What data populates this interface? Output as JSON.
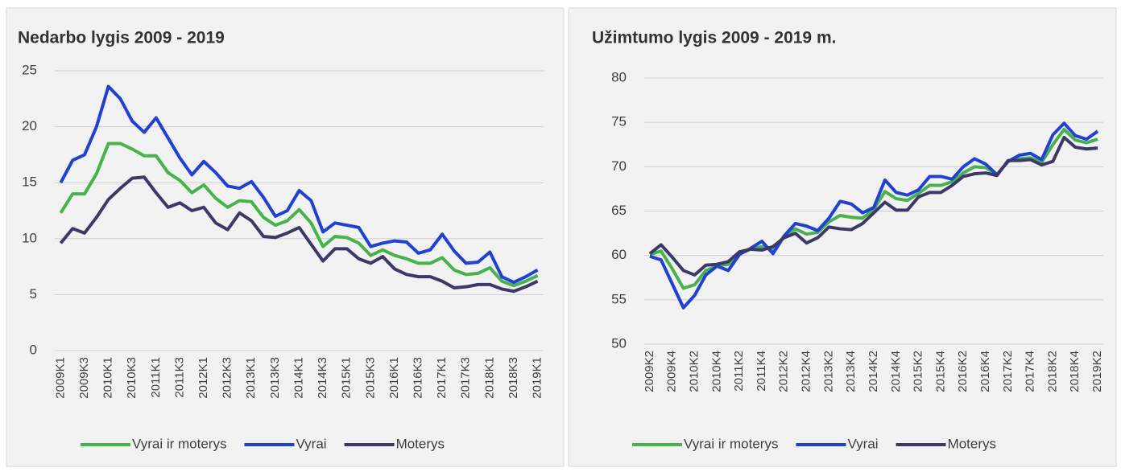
{
  "chart_data": [
    {
      "type": "line",
      "title": "Nedarbo lygis 2009 - 2019",
      "categories": [
        "2009K1",
        null,
        "2009K3",
        null,
        "2010K1",
        null,
        "2010K3",
        null,
        "2011K1",
        null,
        "2011K3",
        null,
        "2012K1",
        null,
        "2012K3",
        null,
        "2013K1",
        null,
        "2013K3",
        null,
        "2014K1",
        null,
        "2014K3",
        null,
        "2015K1",
        null,
        "2015K3",
        null,
        "2016K1",
        null,
        "2016K3",
        null,
        "2017K1",
        null,
        "2017K3",
        null,
        "2018K1",
        null,
        "2018K3",
        null,
        "2019K1"
      ],
      "series": [
        {
          "name": "Vyrai ir moterys",
          "color": "#45b54a",
          "values": [
            12.3,
            14,
            14,
            15.8,
            18.5,
            18.5,
            18,
            17.4,
            17.4,
            15.9,
            15.2,
            14.1,
            14.8,
            13.6,
            12.8,
            13.4,
            13.3,
            11.9,
            11.2,
            11.6,
            12.6,
            11.4,
            9.3,
            10.2,
            10.1,
            9.6,
            8.5,
            9,
            8.5,
            8.2,
            7.8,
            7.8,
            8.3,
            7.2,
            6.8,
            6.9,
            7.4,
            6.2,
            5.8,
            6.2,
            6.7
          ]
        },
        {
          "name": "Vyrai",
          "color": "#2040de",
          "values": [
            15,
            17,
            17.5,
            20,
            23.6,
            22.5,
            20.5,
            19.5,
            20.8,
            19,
            17.2,
            15.7,
            16.9,
            15.9,
            14.7,
            14.5,
            15.1,
            13.7,
            12,
            12.5,
            14.3,
            13.4,
            10.6,
            11.4,
            11.2,
            11,
            9.3,
            9.6,
            9.8,
            9.7,
            8.7,
            9,
            10.4,
            8.9,
            7.8,
            7.9,
            8.8,
            6.6,
            6.1,
            6.6,
            7.2
          ]
        },
        {
          "name": "Moterys",
          "color": "#3e3868",
          "values": [
            9.6,
            10.9,
            10.5,
            11.9,
            13.5,
            14.5,
            15.4,
            15.5,
            14.1,
            12.8,
            13.2,
            12.5,
            12.8,
            11.4,
            10.8,
            12.3,
            11.6,
            10.2,
            10.1,
            10.5,
            11,
            9.5,
            8,
            9.1,
            9.1,
            8.2,
            7.8,
            8.4,
            7.3,
            6.8,
            6.6,
            6.6,
            6.2,
            5.6,
            5.7,
            5.9,
            5.9,
            5.5,
            5.3,
            5.7,
            6.2
          ]
        }
      ],
      "ylim": [
        0,
        25
      ],
      "yticks": [
        0,
        5,
        10,
        15,
        20,
        25
      ],
      "grid": true,
      "legend": "bottom"
    },
    {
      "type": "line",
      "title": "Užimtumo lygis 2009 - 2019 m.",
      "categories": [
        "2009K2",
        null,
        "2009K4",
        null,
        "2010K2",
        null,
        "2010K4",
        null,
        "2011K2",
        null,
        "2011K4",
        null,
        "2012K2",
        null,
        "2012K4",
        null,
        "2013K2",
        null,
        "2013K4",
        null,
        "2014K2",
        null,
        "2014K4",
        null,
        "2015K2",
        null,
        "2015K4",
        null,
        "2016K2",
        null,
        "2016K4",
        null,
        "2017K2",
        null,
        "2017K4",
        null,
        "2018K2",
        null,
        "2018K4",
        null,
        "2019K2"
      ],
      "series": [
        {
          "name": "Vyrai ir moterys",
          "color": "#45b54a",
          "values": [
            60.1,
            60.5,
            58.5,
            56.3,
            56.7,
            58.3,
            58.8,
            59,
            60.2,
            60.7,
            61,
            60.6,
            62.2,
            63,
            62.4,
            62.6,
            63.8,
            64.5,
            64.3,
            64.2,
            65.2,
            67.2,
            66.4,
            66.2,
            67,
            67.9,
            67.9,
            68.3,
            69.3,
            70,
            69.9,
            69.1,
            70.6,
            70.9,
            71,
            70.5,
            72.5,
            74.2,
            73,
            72.7,
            73.1
          ]
        },
        {
          "name": "Vyrai",
          "color": "#2040de",
          "values": [
            59.9,
            59.5,
            56.8,
            54.1,
            55.5,
            57.8,
            58.8,
            58.3,
            60.1,
            60.8,
            61.6,
            60.2,
            62.2,
            63.6,
            63.3,
            62.8,
            64.2,
            66.1,
            65.8,
            64.8,
            65.4,
            68.5,
            67.1,
            66.8,
            67.4,
            68.9,
            68.9,
            68.6,
            70,
            70.9,
            70.3,
            69.1,
            70.6,
            71.3,
            71.5,
            70.8,
            73.6,
            74.9,
            73.5,
            73.1,
            74
          ]
        },
        {
          "name": "Moterys",
          "color": "#3e3868",
          "values": [
            60.2,
            61.2,
            59.8,
            58.3,
            57.8,
            58.9,
            59,
            59.3,
            60.4,
            60.7,
            60.6,
            61,
            62,
            62.5,
            61.4,
            62,
            63.2,
            63,
            62.9,
            63.6,
            64.8,
            66,
            65.1,
            65.1,
            66.6,
            67.1,
            67.1,
            67.9,
            68.9,
            69.2,
            69.3,
            69,
            70.7,
            70.7,
            70.8,
            70.2,
            70.6,
            73.3,
            72.2,
            72,
            72.1
          ]
        }
      ],
      "ylim": [
        50,
        80
      ],
      "yticks": [
        50,
        55,
        60,
        65,
        70,
        75,
        80
      ],
      "grid": true,
      "legend": "bottom"
    }
  ]
}
